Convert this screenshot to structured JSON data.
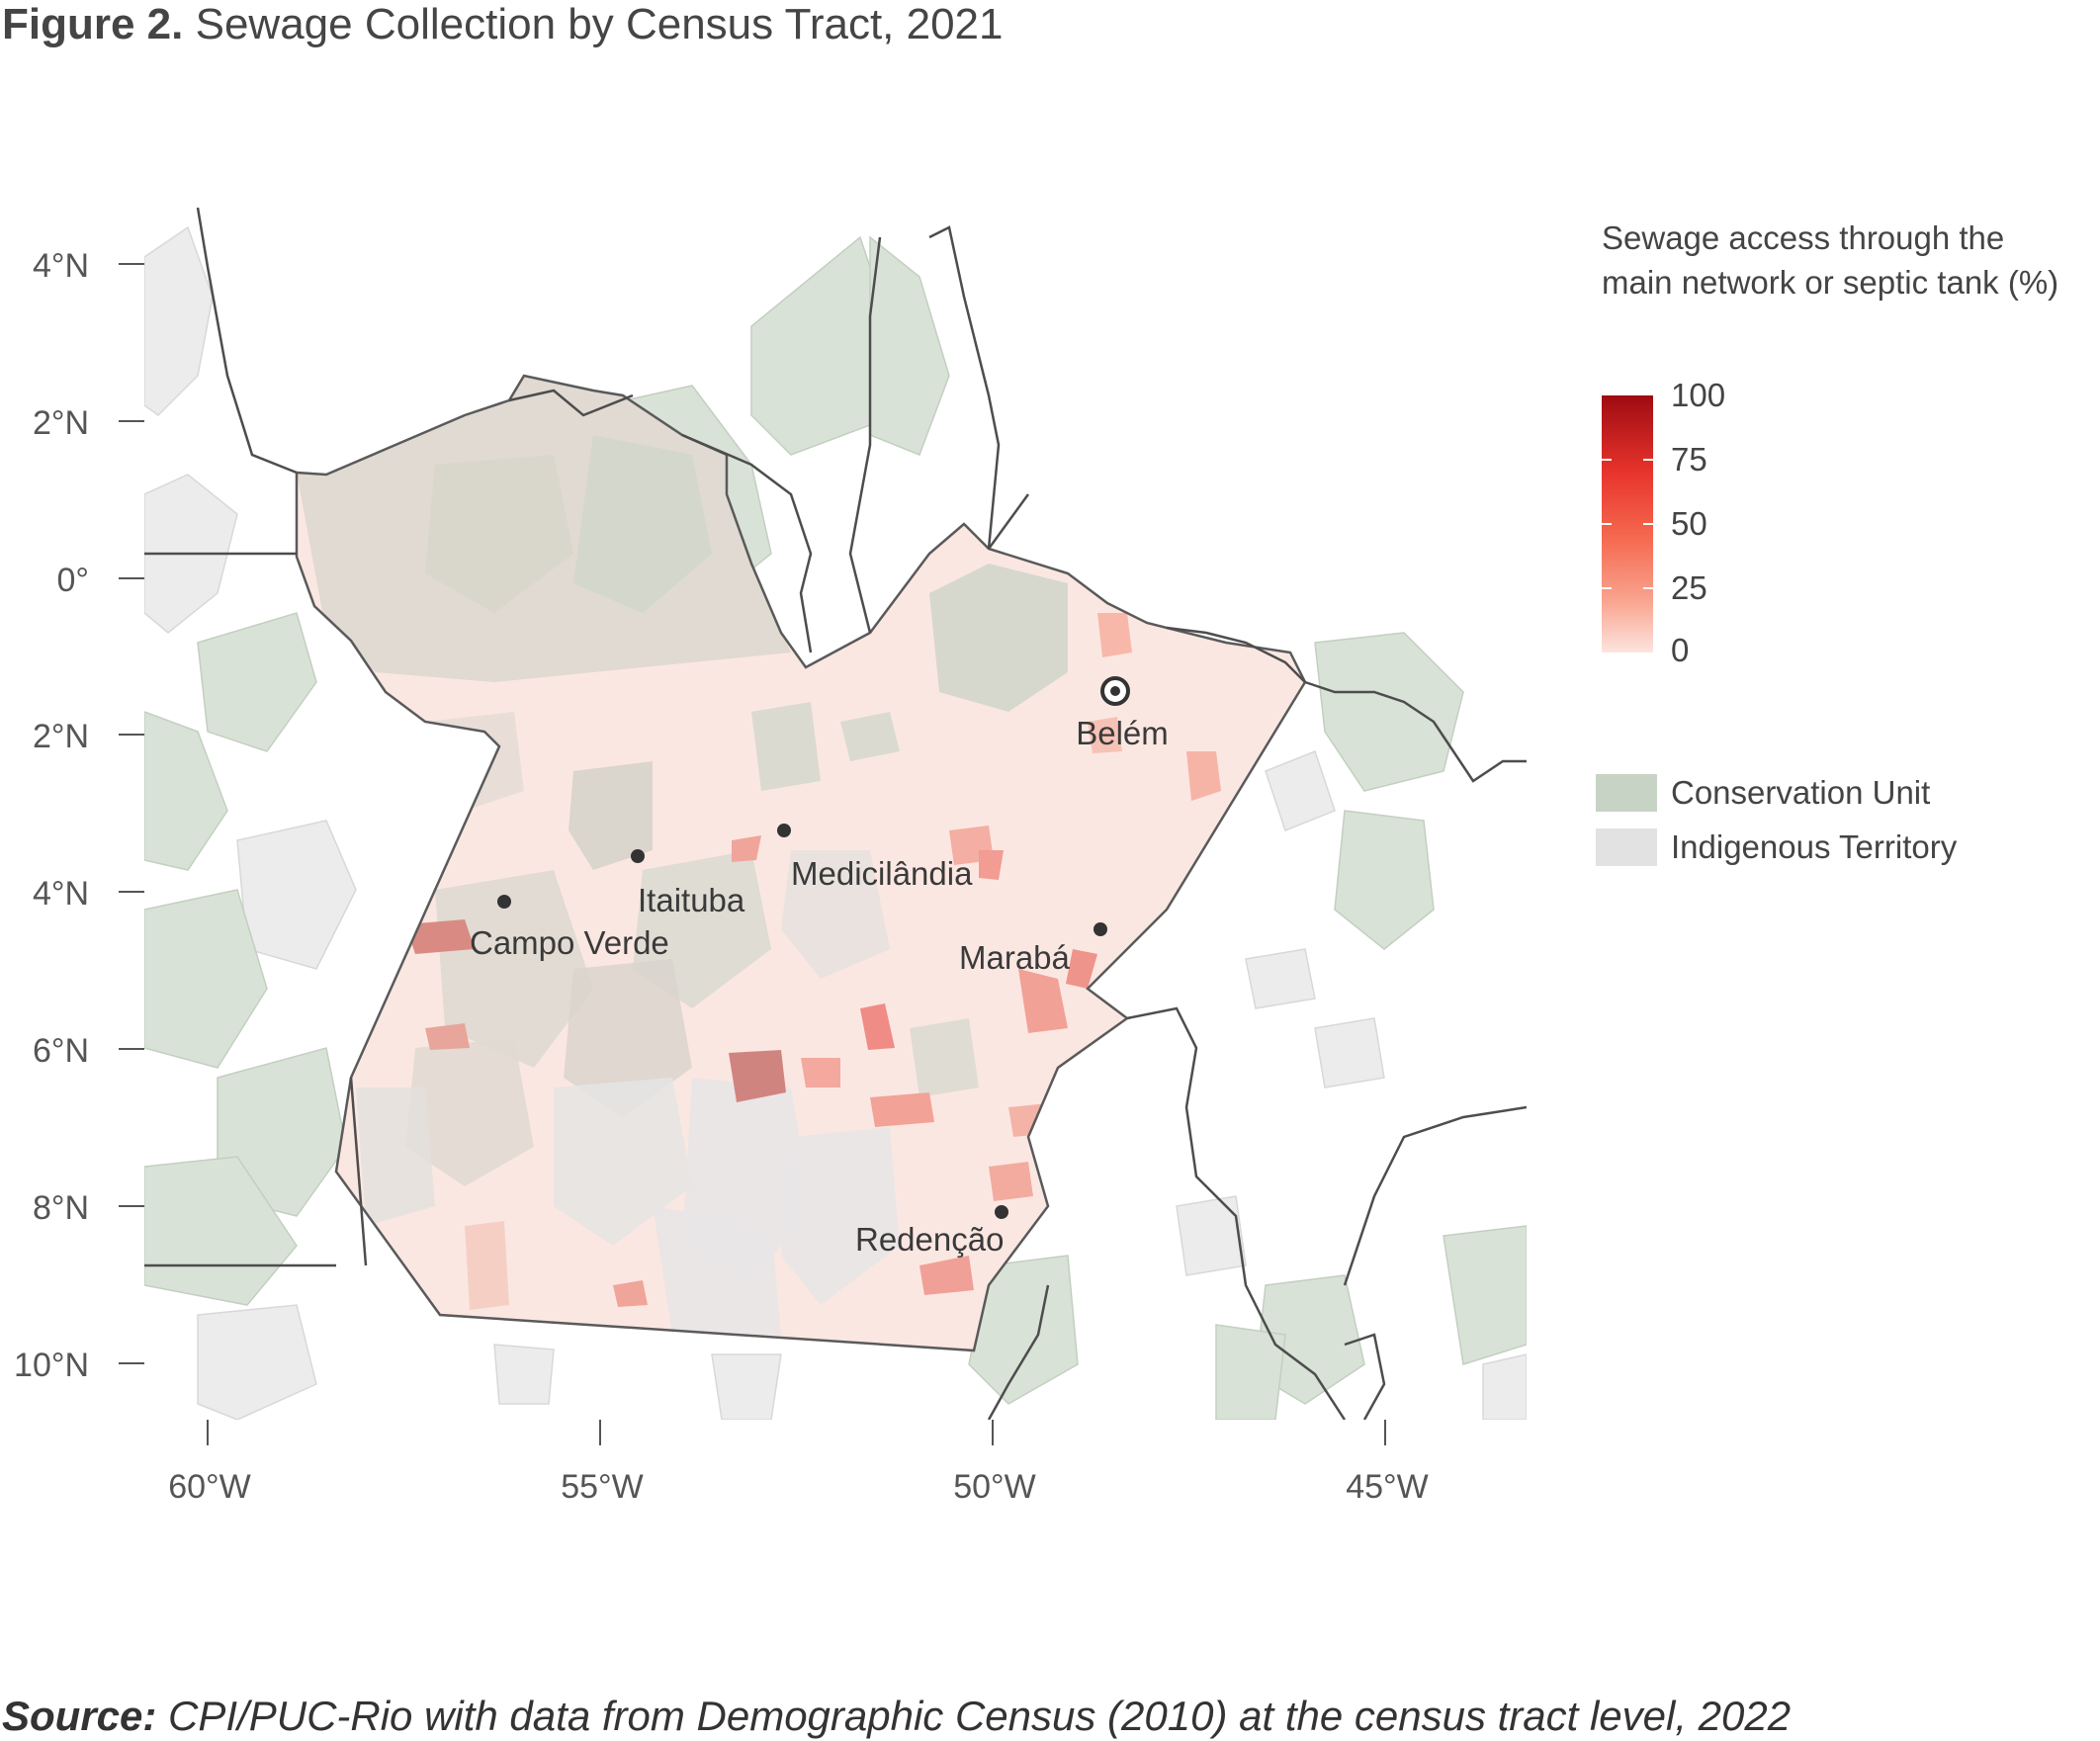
{
  "figure": {
    "title_lead": "Figure 2.",
    "title_rest": " Sewage Collection by Census Tract, 2021",
    "source_lead": "Source:",
    "source_rest": " CPI/PUC-Rio with data from Demographic Census (2010) at the census tract level, 2022"
  },
  "axes": {
    "y_ticks": [
      {
        "label": "4°N",
        "value": 4
      },
      {
        "label": "2°N",
        "value": 2
      },
      {
        "label": "0°",
        "value": 0
      },
      {
        "label": "2°N",
        "value": -2
      },
      {
        "label": "4°N",
        "value": -4
      },
      {
        "label": "6°N",
        "value": -6
      },
      {
        "label": "8°N",
        "value": -8
      },
      {
        "label": "10°N",
        "value": -10
      }
    ],
    "x_ticks": [
      {
        "label": "60°W",
        "value": -60
      },
      {
        "label": "55°W",
        "value": -55
      },
      {
        "label": "50°W",
        "value": -50
      },
      {
        "label": "45°W",
        "value": -45
      }
    ]
  },
  "cities": [
    {
      "name": "Belém",
      "lon": -48.3,
      "lat": -1.4,
      "capital": true
    },
    {
      "name": "Medicilândia",
      "lon": -52.5,
      "lat": -3.2,
      "capital": false
    },
    {
      "name": "Itaituba",
      "lon": -54.7,
      "lat": -3.55,
      "capital": false
    },
    {
      "name": "Campo Verde",
      "lon": -56.35,
      "lat": -4.1,
      "capital": false
    },
    {
      "name": "Marabá",
      "lon": -48.9,
      "lat": -4.45,
      "capital": false
    },
    {
      "name": "Redenção",
      "lon": -50.1,
      "lat": -8.1,
      "capital": false
    }
  ],
  "legend": {
    "color_title_line1": "Sewage access through the",
    "color_title_line2": "main network or septic tank (%)",
    "color_ticks": [
      "100",
      "75",
      "50",
      "25",
      "0"
    ],
    "color_min": "#fde5de",
    "color_max": "#9e0b12",
    "items": [
      {
        "label": "Conservation Unit",
        "color": "#c7d3c5"
      },
      {
        "label": "Indigenous Territory",
        "color": "#e2e2e2"
      }
    ]
  }
}
